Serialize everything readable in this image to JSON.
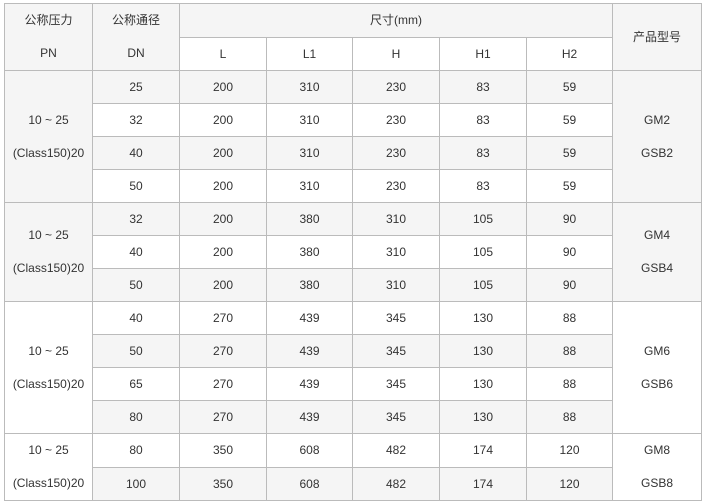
{
  "header": {
    "pn_label": "公称压力",
    "pn_sub": "PN",
    "dn_label": "公称通径",
    "dn_sub": "DN",
    "dims_label": "尺寸(mm)",
    "dims_columns": [
      "L",
      "L1",
      "H",
      "H1",
      "H2"
    ],
    "model_label": "产品型号"
  },
  "groups": [
    {
      "pn": [
        "10 ~ 25",
        "(Class150)20"
      ],
      "model": [
        "GM2",
        "GSB2"
      ],
      "rows": [
        [
          "25",
          "200",
          "310",
          "230",
          "83",
          "59"
        ],
        [
          "32",
          "200",
          "310",
          "230",
          "83",
          "59"
        ],
        [
          "40",
          "200",
          "310",
          "230",
          "83",
          "59"
        ],
        [
          "50",
          "200",
          "310",
          "230",
          "83",
          "59"
        ]
      ]
    },
    {
      "pn": [
        "10 ~ 25",
        "(Class150)20"
      ],
      "model": [
        "GM4",
        "GSB4"
      ],
      "rows": [
        [
          "32",
          "200",
          "380",
          "310",
          "105",
          "90"
        ],
        [
          "40",
          "200",
          "380",
          "310",
          "105",
          "90"
        ],
        [
          "50",
          "200",
          "380",
          "310",
          "105",
          "90"
        ]
      ]
    },
    {
      "pn": [
        "10 ~ 25",
        "(Class150)20"
      ],
      "model": [
        "GM6",
        "GSB6"
      ],
      "rows": [
        [
          "40",
          "270",
          "439",
          "345",
          "130",
          "88"
        ],
        [
          "50",
          "270",
          "439",
          "345",
          "130",
          "88"
        ],
        [
          "65",
          "270",
          "439",
          "345",
          "130",
          "88"
        ],
        [
          "80",
          "270",
          "439",
          "345",
          "130",
          "88"
        ]
      ]
    },
    {
      "pn": [
        "10 ~ 25",
        "(Class150)20"
      ],
      "model": [
        "GM8",
        "GSB8"
      ],
      "rows": [
        [
          "80",
          "350",
          "608",
          "482",
          "174",
          "120"
        ],
        [
          "100",
          "350",
          "608",
          "482",
          "174",
          "120"
        ]
      ]
    }
  ]
}
